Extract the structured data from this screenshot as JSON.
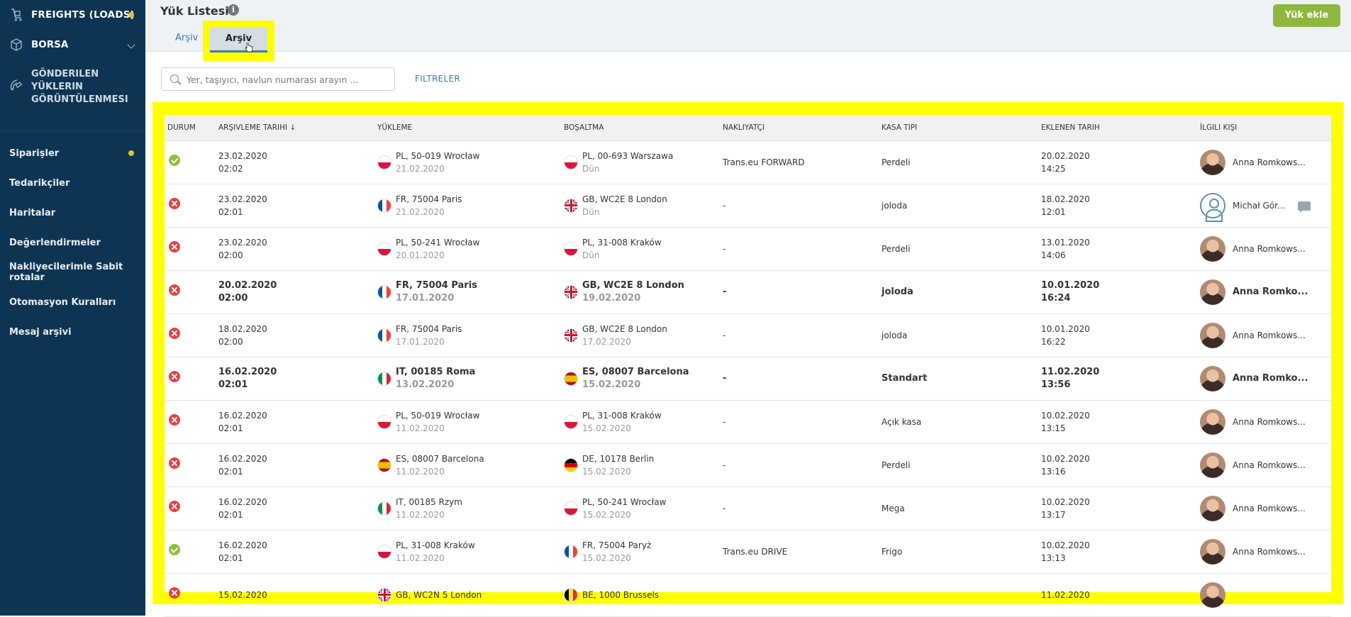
{
  "sidebar": {
    "top": {
      "label": "FREIGHTS (LOADS)"
    },
    "borsa": {
      "label": "BORSA"
    },
    "gonderilen": {
      "lines": [
        "GÖNDERILEN",
        "YÜKLERIN",
        "GÖRÜNTÜLENMESI"
      ]
    },
    "items": [
      {
        "label": "Siparişler"
      },
      {
        "label": "Tedarikçiler"
      },
      {
        "label": "Haritalar"
      },
      {
        "label": "Değerlendirmeler"
      },
      {
        "label": "Nakliyecilerimle Sabit rotalar"
      },
      {
        "label": "Otomasyon Kuralları"
      },
      {
        "label": "Mesaj arşivi"
      }
    ]
  },
  "header": {
    "title": "Yük Listesi",
    "info_icon": "i",
    "tabs": [
      {
        "label": "Arşiv"
      },
      {
        "label": "Arşiv"
      }
    ],
    "add_button": "Yük ekle"
  },
  "search": {
    "placeholder": "Yer, taşıyıcı, navlun numarası arayın ..."
  },
  "filters_label": "FILTRELER",
  "table": {
    "headers": [
      "DURUM",
      "ARŞIVLEME TARIHI ↓",
      "YÜKLEME",
      "BOŞALTMA",
      "NAKLIYATÇI",
      "KASA TIPI",
      "EKLENEN TARIH",
      "İLGILI KIŞI"
    ],
    "rows": [
      {
        "status": "ok",
        "bold": false,
        "arch_date": "23.02.2020",
        "arch_time": "02:02",
        "load_flag": "PL",
        "load": "PL, 50-019 Wrocław",
        "load_date": "21.02.2020",
        "unload_flag": "PL",
        "unload": "PL, 00-693 Warszawa",
        "unload_date": "Dün",
        "carrier": "Trans.eu FORWARD",
        "body": "Perdeli",
        "added_date": "20.02.2020",
        "added_time": "14:25",
        "person": "Anna Romkows...",
        "avatar": "photo",
        "message": false
      },
      {
        "status": "err",
        "bold": false,
        "arch_date": "23.02.2020",
        "arch_time": "02:01",
        "load_flag": "FR",
        "load": "FR, 75004 Paris",
        "load_date": "21.02.2020",
        "unload_flag": "GB",
        "unload": "GB, WC2E 8 London",
        "unload_date": "Dün",
        "carrier": "-",
        "body": "joloda",
        "added_date": "18.02.2020",
        "added_time": "12:01",
        "person": "Michał Gór...",
        "avatar": "blank",
        "message": true
      },
      {
        "status": "err",
        "bold": false,
        "arch_date": "23.02.2020",
        "arch_time": "02:00",
        "load_flag": "PL",
        "load": "PL, 50-241 Wrocław",
        "load_date": "20.01.2020",
        "unload_flag": "PL",
        "unload": "PL, 31-008 Kraków",
        "unload_date": "Dün",
        "carrier": "-",
        "body": "Perdeli",
        "added_date": "13.01.2020",
        "added_time": "14:06",
        "person": "Anna Romkows...",
        "avatar": "photo",
        "message": false
      },
      {
        "status": "err",
        "bold": true,
        "arch_date": "20.02.2020",
        "arch_time": "02:00",
        "load_flag": "FR",
        "load": "FR, 75004 Paris",
        "load_date": "17.01.2020",
        "unload_flag": "GB",
        "unload": "GB, WC2E 8 London",
        "unload_date": "19.02.2020",
        "carrier": "-",
        "body": "joloda",
        "added_date": "10.01.2020",
        "added_time": "16:24",
        "person": "Anna Romko...",
        "avatar": "photo",
        "message": false
      },
      {
        "status": "err",
        "bold": false,
        "arch_date": "18.02.2020",
        "arch_time": "02:00",
        "load_flag": "FR",
        "load": "FR, 75004 Paris",
        "load_date": "17.01.2020",
        "unload_flag": "GB",
        "unload": "GB, WC2E 8 London",
        "unload_date": "17.02.2020",
        "carrier": "-",
        "body": "joloda",
        "added_date": "10.01.2020",
        "added_time": "16:22",
        "person": "Anna Romkows...",
        "avatar": "photo",
        "message": false
      },
      {
        "status": "err",
        "bold": true,
        "arch_date": "16.02.2020",
        "arch_time": "02:01",
        "load_flag": "IT",
        "load": "IT, 00185 Roma",
        "load_date": "13.02.2020",
        "unload_flag": "ES",
        "unload": "ES, 08007 Barcelona",
        "unload_date": "15.02.2020",
        "carrier": "-",
        "body": "Standart",
        "added_date": "11.02.2020",
        "added_time": "13:56",
        "person": "Anna Romko...",
        "avatar": "photo",
        "message": false
      },
      {
        "status": "err",
        "bold": false,
        "arch_date": "16.02.2020",
        "arch_time": "02:01",
        "load_flag": "PL",
        "load": "PL, 50-019 Wrocław",
        "load_date": "11.02.2020",
        "unload_flag": "PL",
        "unload": "PL, 31-008 Kraków",
        "unload_date": "15.02.2020",
        "carrier": "-",
        "body": "Açık kasa",
        "added_date": "10.02.2020",
        "added_time": "13:15",
        "person": "Anna Romkows...",
        "avatar": "photo",
        "message": false
      },
      {
        "status": "err",
        "bold": false,
        "arch_date": "16.02.2020",
        "arch_time": "02:01",
        "load_flag": "ES",
        "load": "ES, 08007 Barcelona",
        "load_date": "11.02.2020",
        "unload_flag": "DE",
        "unload": "DE, 10178 Berlin",
        "unload_date": "15.02.2020",
        "carrier": "-",
        "body": "Perdeli",
        "added_date": "10.02.2020",
        "added_time": "13:16",
        "person": "Anna Romkows...",
        "avatar": "photo",
        "message": false
      },
      {
        "status": "err",
        "bold": false,
        "arch_date": "16.02.2020",
        "arch_time": "02:01",
        "load_flag": "IT",
        "load": "IT, 00185 Rzym",
        "load_date": "11.02.2020",
        "unload_flag": "PL",
        "unload": "PL, 50-241 Wrocław",
        "unload_date": "15.02.2020",
        "carrier": "-",
        "body": "Mega",
        "added_date": "10.02.2020",
        "added_time": "13:17",
        "person": "Anna Romkows...",
        "avatar": "photo",
        "message": false
      },
      {
        "status": "ok",
        "bold": false,
        "arch_date": "16.02.2020",
        "arch_time": "02:01",
        "load_flag": "PL",
        "load": "PL, 31-008 Kraków",
        "load_date": "11.02.2020",
        "unload_flag": "FR",
        "unload": "FR, 75004 Paryż",
        "unload_date": "15.02.2020",
        "carrier": "Trans.eu DRIVE",
        "body": "Frigo",
        "added_date": "10.02.2020",
        "added_time": "13:13",
        "person": "Anna Romkows...",
        "avatar": "photo",
        "message": false
      },
      {
        "status": "err",
        "bold": false,
        "arch_date": "15.02.2020",
        "arch_time": "",
        "load_flag": "GB",
        "load": "GB, WC2N 5 London",
        "load_date": "",
        "unload_flag": "BE",
        "unload": "BE, 1000 Brussels",
        "unload_date": "",
        "carrier": "",
        "body": "",
        "added_date": "11.02.2020",
        "added_time": "",
        "person": "",
        "avatar": "photo",
        "message": false
      }
    ]
  },
  "colors": {
    "sidebar_bg": "#0d3553",
    "accent_green": "#8fb73e",
    "highlight": "#ffff00",
    "link_blue": "#3f7aa6",
    "error_red": "#e8403f",
    "ok_green": "#8fbf3a"
  }
}
